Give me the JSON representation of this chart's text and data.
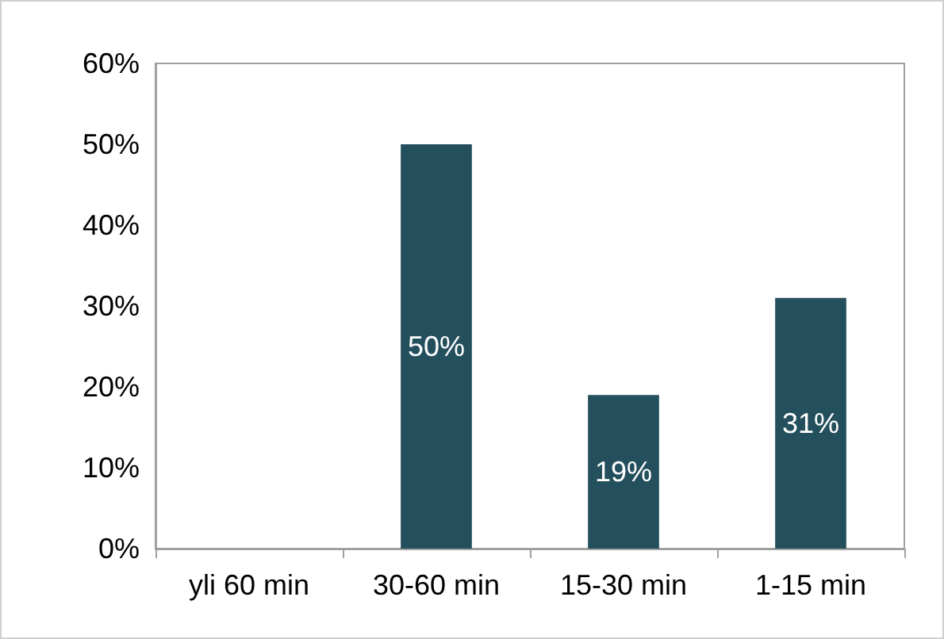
{
  "chart_data": {
    "type": "bar",
    "categories": [
      "yli 60 min",
      "30-60 min",
      "15-30 min",
      "1-15 min"
    ],
    "values": [
      0,
      50,
      19,
      31
    ],
    "color": "#244f5d",
    "value_labels": [
      null,
      "50%",
      "19%",
      "31%"
    ],
    "ylim": [
      0,
      60
    ],
    "yticks": [
      {
        "value": 0,
        "label": "0%"
      },
      {
        "value": 10,
        "label": "10%"
      },
      {
        "value": 20,
        "label": "20%"
      },
      {
        "value": 30,
        "label": "30%"
      },
      {
        "value": 40,
        "label": "40%"
      },
      {
        "value": 50,
        "label": "50%"
      },
      {
        "value": 60,
        "label": "60%"
      }
    ]
  }
}
